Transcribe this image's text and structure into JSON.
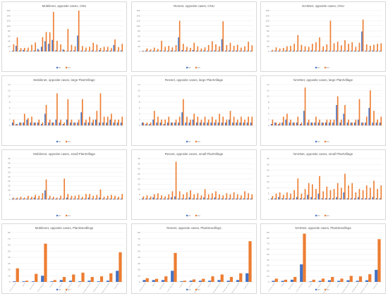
{
  "colors": {
    "fp": "#4472c4",
    "fn": "#ed7d31",
    "grid": "#e7e7e7",
    "axis": "#bfbfbf"
  },
  "legend": {
    "fp": "FP",
    "fn": "FN"
  },
  "chart_data": [
    {
      "type": "bar",
      "title": "Mobilenet, opposite cases, CNU",
      "yticks": [
        0,
        20,
        40,
        60,
        80,
        100,
        120,
        140,
        160
      ],
      "ylim": [
        0,
        160
      ],
      "series": [
        {
          "name": "FP",
          "values": [
            3,
            22,
            4,
            6,
            3,
            2,
            4,
            10,
            18,
            40,
            30,
            45,
            5,
            2,
            8,
            2,
            3,
            4,
            62,
            3,
            3,
            2,
            4,
            2,
            5,
            3,
            4,
            3,
            25,
            2,
            4
          ]
        },
        {
          "name": "FN",
          "values": [
            28,
            55,
            13,
            14,
            15,
            26,
            35,
            5,
            56,
            76,
            75,
            155,
            42,
            28,
            6,
            88,
            26,
            20,
            160,
            21,
            15,
            18,
            34,
            27,
            14,
            18,
            18,
            13,
            47,
            17,
            30
          ]
        }
      ]
    },
    {
      "type": "bar",
      "title": "Resnet, opposite cases, CNU",
      "yticks": [
        0,
        20,
        40,
        60,
        80,
        100,
        120,
        140,
        160
      ],
      "ylim": [
        0,
        160
      ],
      "series": [
        {
          "name": "FP",
          "values": [
            2,
            4,
            3,
            3,
            3,
            4,
            3,
            3,
            4,
            3,
            55,
            5,
            4,
            3,
            6,
            3,
            3,
            4,
            3,
            3,
            4,
            3,
            48,
            3,
            4,
            3,
            4,
            3,
            3,
            3,
            3
          ]
        },
        {
          "name": "FN",
          "values": [
            3,
            12,
            8,
            15,
            10,
            42,
            18,
            22,
            16,
            25,
            120,
            30,
            18,
            14,
            34,
            20,
            12,
            16,
            25,
            40,
            28,
            20,
            118,
            25,
            34,
            22,
            26,
            15,
            20,
            38,
            24
          ]
        }
      ]
    },
    {
      "type": "bar",
      "title": "NASNet, opposite cases, CNU",
      "yticks": [
        0,
        20,
        40,
        60,
        80,
        100,
        120,
        140,
        160
      ],
      "ylim": [
        0,
        160
      ],
      "series": [
        {
          "name": "FP",
          "values": [
            2,
            3,
            3,
            2,
            4,
            3,
            3,
            3,
            4,
            3,
            3,
            4,
            3,
            3,
            3,
            4,
            3,
            3,
            3,
            3,
            3,
            4,
            3,
            3,
            3,
            78,
            3,
            3,
            4,
            3,
            3
          ]
        },
        {
          "name": "FN",
          "values": [
            6,
            16,
            12,
            14,
            20,
            22,
            30,
            64,
            26,
            20,
            18,
            30,
            36,
            55,
            20,
            28,
            120,
            32,
            38,
            24,
            44,
            30,
            36,
            18,
            34,
            125,
            28,
            22,
            26,
            30,
            32
          ]
        }
      ]
    },
    {
      "type": "bar",
      "title": "Mobilenet, opposite cases, large PlantVillage",
      "yticks": [
        0,
        2,
        4,
        6,
        8,
        10,
        12,
        14
      ],
      "ylim": [
        0,
        14
      ],
      "series": [
        {
          "name": "FP",
          "values": [
            1,
            0.5,
            1,
            1,
            2,
            1,
            1,
            1,
            0.5,
            4,
            1,
            1,
            2,
            1,
            0.5,
            2,
            1,
            1,
            1,
            4.5,
            1,
            1,
            1,
            2,
            1,
            1,
            1,
            2,
            1,
            1,
            1
          ]
        },
        {
          "name": "FN",
          "values": [
            2,
            0.5,
            1,
            4,
            2.5,
            3,
            1,
            2,
            1,
            7,
            2,
            1,
            11,
            2,
            1,
            9,
            2,
            1,
            2,
            9,
            2,
            3,
            2,
            5,
            11,
            3,
            3,
            4,
            2,
            2,
            3
          ]
        }
      ]
    },
    {
      "type": "bar",
      "title": "Resnet, opposite cases, large PlantVillage",
      "yticks": [
        0,
        2,
        4,
        6,
        8,
        10,
        12,
        14
      ],
      "ylim": [
        0,
        14
      ],
      "series": [
        {
          "name": "FP",
          "values": [
            1,
            0.5,
            0.5,
            2,
            1,
            1,
            0.5,
            1,
            1,
            1,
            1,
            4.5,
            1,
            1,
            2,
            1,
            1,
            1,
            1,
            1,
            1,
            1,
            1,
            1,
            2,
            1,
            1,
            1,
            1,
            1,
            1
          ]
        },
        {
          "name": "FN",
          "values": [
            1,
            1,
            1,
            5,
            3,
            2,
            2,
            3,
            1,
            2,
            3,
            9,
            3,
            2,
            4,
            3,
            2,
            3,
            2,
            3,
            2,
            4,
            3,
            2,
            5,
            3,
            2,
            3,
            2,
            3,
            3
          ]
        }
      ]
    },
    {
      "type": "bar",
      "title": "NASNet, opposite cases, large PlantVillage",
      "yticks": [
        0,
        2,
        4,
        6,
        8,
        10,
        12,
        14
      ],
      "ylim": [
        0,
        14
      ],
      "series": [
        {
          "name": "FP",
          "values": [
            0.5,
            1,
            0.5,
            1,
            2,
            1,
            1,
            1,
            0.5,
            5,
            1,
            1,
            1,
            1,
            1,
            1,
            1,
            1,
            7,
            1,
            4,
            1,
            1,
            1,
            2,
            1,
            1,
            6,
            1,
            1,
            1
          ]
        },
        {
          "name": "FN",
          "values": [
            2,
            1,
            1,
            3,
            4,
            2,
            1,
            3,
            1,
            13,
            2,
            1,
            3,
            2,
            1,
            2,
            2,
            2,
            10,
            2,
            7,
            2,
            1,
            2,
            9,
            1,
            3,
            12,
            5,
            2,
            3
          ]
        }
      ]
    },
    {
      "type": "bar",
      "title": "Mobilenet, opposite cases, small PlantVillage",
      "yticks": [
        0,
        5,
        10,
        15,
        20,
        25,
        30,
        35,
        40,
        45
      ],
      "ylim": [
        0,
        45
      ],
      "series": [
        {
          "name": "FP",
          "values": [
            1,
            1,
            1,
            1,
            1,
            1,
            2,
            1,
            1,
            10,
            1,
            1,
            1,
            1,
            1,
            2,
            1,
            1,
            1,
            1,
            1,
            2,
            1,
            1,
            2,
            1,
            1,
            1,
            1,
            1,
            1
          ]
        },
        {
          "name": "FN",
          "values": [
            2,
            2,
            3,
            2,
            4,
            3,
            5,
            4,
            7,
            22,
            4,
            3,
            2,
            4,
            23,
            6,
            4,
            4,
            5,
            3,
            6,
            6,
            4,
            5,
            11,
            3,
            4,
            5,
            4,
            3,
            6
          ]
        }
      ]
    },
    {
      "type": "bar",
      "title": "Resnet, opposite cases, small PlantVillage",
      "yticks": [
        0,
        5,
        10,
        15,
        20,
        25,
        30,
        35,
        40
      ],
      "ylim": [
        0,
        40
      ],
      "series": [
        {
          "name": "FP",
          "values": [
            1,
            1,
            1,
            2,
            1,
            1,
            1,
            1,
            2,
            3,
            1,
            1,
            1,
            2,
            1,
            1,
            1,
            2,
            1,
            1,
            2,
            1,
            1,
            1,
            1,
            1,
            1,
            1,
            1,
            1,
            1
          ]
        },
        {
          "name": "FN",
          "values": [
            3,
            4,
            3,
            5,
            6,
            4,
            3,
            5,
            8,
            37,
            8,
            5,
            7,
            9,
            5,
            6,
            4,
            10,
            5,
            6,
            8,
            5,
            4,
            6,
            5,
            7,
            5,
            4,
            8,
            6,
            5
          ]
        }
      ]
    },
    {
      "type": "bar",
      "title": "NASNet, opposite cases, small PlantVillage",
      "yticks": [
        0,
        5,
        10,
        15,
        20,
        25,
        30,
        35
      ],
      "ylim": [
        0,
        35
      ],
      "series": [
        {
          "name": "FP",
          "values": [
            1,
            1,
            2,
            1,
            1,
            1,
            1,
            2,
            1,
            1,
            4,
            2,
            1,
            5,
            1,
            1,
            1,
            1,
            2,
            1,
            6,
            1,
            1,
            1,
            2,
            1,
            1,
            1,
            2,
            1,
            1
          ]
        },
        {
          "name": "FN",
          "values": [
            3,
            5,
            6,
            4,
            6,
            5,
            8,
            18,
            5,
            9,
            14,
            13,
            9,
            20,
            7,
            11,
            8,
            9,
            14,
            10,
            22,
            12,
            14,
            6,
            9,
            8,
            12,
            10,
            16,
            9,
            12
          ]
        }
      ]
    },
    {
      "type": "bar",
      "title": "Mobilenet, opposite cases, PlantSeedlings",
      "yticks": [
        0,
        10,
        20,
        30,
        40,
        50,
        60,
        70,
        80
      ],
      "ylim": [
        0,
        80
      ],
      "categories": [
        "Common wheat",
        "Maize",
        "Black-grass",
        "Loose Silky-bent",
        "Charlock",
        "Cleavers",
        "Common Chickweed",
        "Fat Hen",
        "Scentless Mayweed",
        "Shepherds Purse",
        "Small-flowered Cranesbill",
        "Sugar beet"
      ],
      "series": [
        {
          "name": "FP",
          "values": [
            1,
            1,
            1,
            10,
            1,
            3,
            2,
            1,
            2,
            1,
            2,
            18
          ]
        },
        {
          "name": "FN",
          "values": [
            22,
            2,
            13,
            62,
            3,
            8,
            12,
            15,
            8,
            9,
            14,
            48
          ]
        }
      ]
    },
    {
      "type": "bar",
      "title": "Resnet, opposite cases, PlantSeedlings",
      "yticks": [
        0,
        10,
        20,
        30,
        40,
        50,
        60,
        70,
        80
      ],
      "ylim": [
        0,
        80
      ],
      "categories": [
        "Common wheat",
        "Maize",
        "Black-grass",
        "Loose Silky-bent",
        "Charlock",
        "Cleavers",
        "Common Chickweed",
        "Fat Hen",
        "Scentless Mayweed",
        "Shepherds Purse",
        "Small-flowered Cranesbill",
        "Sugar beet"
      ],
      "series": [
        {
          "name": "FP",
          "values": [
            3,
            3,
            3,
            18,
            1,
            2,
            2,
            2,
            3,
            2,
            3,
            14
          ]
        },
        {
          "name": "FN",
          "values": [
            6,
            5,
            9,
            47,
            2,
            4,
            5,
            9,
            12,
            8,
            14,
            66
          ]
        }
      ]
    },
    {
      "type": "bar",
      "title": "NASNet, opposite cases, PlantSeedlings",
      "yticks": [
        0,
        10,
        20,
        30,
        40,
        50,
        60,
        70,
        80,
        90
      ],
      "ylim": [
        0,
        90
      ],
      "categories": [
        "Common wheat",
        "Maize",
        "Black-grass",
        "Loose Silky-bent",
        "Charlock",
        "Cleavers",
        "Common Chickweed",
        "Fat Hen",
        "Scentless Mayweed",
        "Shepherds Purse",
        "Small-flowered Cranesbill",
        "Sugar beet"
      ],
      "series": [
        {
          "name": "FP",
          "values": [
            2,
            2,
            4,
            32,
            1,
            2,
            3,
            2,
            3,
            2,
            3,
            22
          ]
        },
        {
          "name": "FN",
          "values": [
            6,
            4,
            9,
            88,
            4,
            6,
            9,
            6,
            11,
            10,
            14,
            78
          ]
        }
      ]
    }
  ]
}
